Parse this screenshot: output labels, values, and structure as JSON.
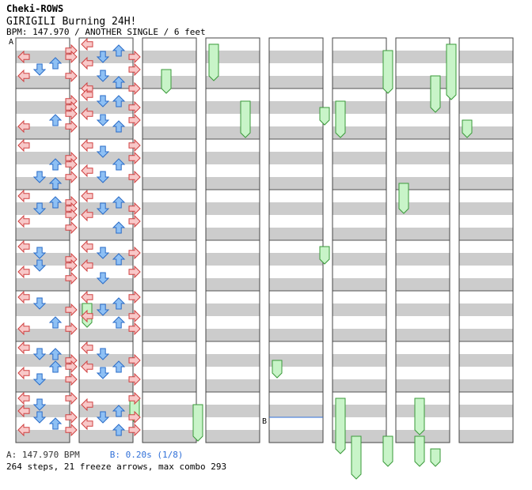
{
  "header": {
    "brand": "Cheki-ROWS",
    "song_title": "GIRIGILI Burning 24H!",
    "meta": "BPM: 147.970 / ANOTHER SINGLE / 6 feet"
  },
  "footer": {
    "bpm_label": "A: 147.970 BPM",
    "stop_label": "B: 0.20s (1/8)",
    "stats": "264 steps, 21 freeze arrows, max combo 293"
  },
  "markers": [
    {
      "label": "A",
      "kind": "bpm",
      "column": 1,
      "beat": 0
    },
    {
      "label": "B",
      "kind": "stop",
      "column": 5,
      "beat": 30
    }
  ],
  "colors": {
    "stripe": "#cccccc",
    "left_right_fill": "#f8c8c8",
    "left_right_stroke": "#d04040",
    "up_down_fill": "#8ec0f4",
    "up_down_stroke": "#2a6cc8",
    "freeze_fill": "#c8f4c8",
    "freeze_stroke": "#3a9a3a"
  },
  "chart_data": {
    "type": "step-chart",
    "panels": [
      "left",
      "down",
      "up",
      "right"
    ],
    "columns": 8,
    "measures_per_column": 8,
    "beats_per_measure": 4,
    "steps": [
      {
        "b": 0.5,
        "d": [
          "right"
        ]
      },
      {
        "b": 1,
        "d": [
          "left",
          "right"
        ]
      },
      {
        "b": 1.5,
        "d": [
          "up"
        ]
      },
      {
        "b": 2,
        "d": [
          "down"
        ]
      },
      {
        "b": 2.5,
        "d": [
          "left",
          "right"
        ]
      },
      {
        "b": 4.5,
        "d": [
          "right"
        ]
      },
      {
        "b": 5,
        "d": [
          "right"
        ]
      },
      {
        "b": 5.5,
        "d": [
          "right"
        ]
      },
      {
        "b": 6,
        "d": [
          "up"
        ]
      },
      {
        "b": 6.5,
        "d": [
          "left",
          "right"
        ]
      },
      {
        "b": 8,
        "d": [
          "left"
        ]
      },
      {
        "b": 9,
        "d": [
          "right"
        ]
      },
      {
        "b": 9.5,
        "d": [
          "up",
          "right"
        ]
      },
      {
        "b": 10.5,
        "d": [
          "down",
          "right"
        ]
      },
      {
        "b": 11,
        "d": [
          "up"
        ]
      },
      {
        "b": 12,
        "d": [
          "left"
        ]
      },
      {
        "b": 12.5,
        "d": [
          "up",
          "right"
        ]
      },
      {
        "b": 13,
        "d": [
          "down",
          "right"
        ]
      },
      {
        "b": 13.5,
        "d": [
          "right"
        ]
      },
      {
        "b": 14,
        "d": [
          "left"
        ]
      },
      {
        "b": 14.5,
        "d": [
          "right"
        ]
      },
      {
        "b": 16,
        "d": [
          "left"
        ]
      },
      {
        "b": 16.5,
        "d": [
          "down"
        ]
      },
      {
        "b": 17,
        "d": [
          "right"
        ]
      },
      {
        "b": 17.5,
        "d": [
          "down",
          "right"
        ]
      },
      {
        "b": 18,
        "d": [
          "left"
        ]
      },
      {
        "b": 18.5,
        "d": [
          "right"
        ]
      },
      {
        "b": 20,
        "d": [
          "left"
        ]
      },
      {
        "b": 20.5,
        "d": [
          "down"
        ]
      },
      {
        "b": 21,
        "d": [
          "right"
        ]
      },
      {
        "b": 22,
        "d": [
          "up"
        ]
      },
      {
        "b": 22.5,
        "d": [
          "left",
          "right"
        ]
      },
      {
        "b": 24,
        "d": [
          "left"
        ]
      },
      {
        "b": 24.5,
        "d": [
          "up",
          "down"
        ]
      },
      {
        "b": 25,
        "d": [
          "right"
        ]
      },
      {
        "b": 25.5,
        "d": [
          "up",
          "right"
        ]
      },
      {
        "b": 26,
        "d": [
          "left"
        ]
      },
      {
        "b": 26.5,
        "d": [
          "down",
          "right"
        ]
      },
      {
        "b": 28,
        "d": [
          "left",
          "right"
        ]
      },
      {
        "b": 28.5,
        "d": [
          "down"
        ]
      },
      {
        "b": 29,
        "d": [
          "left"
        ]
      },
      {
        "b": 29.5,
        "d": [
          "down",
          "right"
        ]
      },
      {
        "b": 30,
        "d": [
          "up"
        ]
      },
      {
        "b": 30.5,
        "d": [
          "left",
          "right"
        ]
      },
      {
        "b": 32,
        "d": [
          "left"
        ]
      },
      {
        "b": 32.5,
        "d": [
          "up"
        ]
      },
      {
        "b": 33,
        "d": [
          "down",
          "right"
        ]
      },
      {
        "b": 33.5,
        "d": [
          "left"
        ]
      },
      {
        "b": 34,
        "d": [
          "right"
        ]
      },
      {
        "b": 34.5,
        "d": [
          "down"
        ]
      },
      {
        "b": 35,
        "d": [
          "up"
        ]
      },
      {
        "b": 35.5,
        "d": [
          "left",
          "right"
        ]
      },
      {
        "b": 36,
        "d": [
          "left"
        ]
      },
      {
        "b": 36.5,
        "d": [
          "down",
          "up"
        ]
      },
      {
        "b": 37,
        "d": [
          "right"
        ]
      },
      {
        "b": 37.5,
        "d": [
          "left"
        ]
      },
      {
        "b": 38,
        "d": [
          "down",
          "right"
        ]
      },
      {
        "b": 38.5,
        "d": [
          "up"
        ]
      },
      {
        "b": 40,
        "d": [
          "left",
          "right"
        ]
      },
      {
        "b": 40.5,
        "d": [
          "down"
        ]
      },
      {
        "b": 41,
        "d": [
          "right"
        ]
      },
      {
        "b": 41.5,
        "d": [
          "up"
        ]
      },
      {
        "b": 42,
        "d": [
          "left"
        ]
      },
      {
        "b": 42.5,
        "d": [
          "down",
          "right"
        ]
      },
      {
        "b": 44,
        "d": [
          "left"
        ]
      },
      {
        "b": 44.5,
        "d": [
          "up"
        ]
      },
      {
        "b": 45,
        "d": [
          "down",
          "right"
        ]
      },
      {
        "b": 45.5,
        "d": [
          "left"
        ]
      },
      {
        "b": 46,
        "d": [
          "right"
        ]
      },
      {
        "b": 46.5,
        "d": [
          "up"
        ]
      },
      {
        "b": 48,
        "d": [
          "left"
        ]
      },
      {
        "b": 48.5,
        "d": [
          "down",
          "right"
        ]
      },
      {
        "b": 49,
        "d": [
          "up"
        ]
      },
      {
        "b": 49.5,
        "d": [
          "left"
        ]
      },
      {
        "b": 50,
        "d": [
          "right"
        ]
      },
      {
        "b": 50.5,
        "d": [
          "down"
        ]
      },
      {
        "b": 52,
        "d": [
          "left",
          "right"
        ]
      },
      {
        "b": 52.5,
        "d": [
          "up"
        ]
      },
      {
        "b": 53,
        "d": [
          "down"
        ]
      },
      {
        "b": 53.5,
        "d": [
          "left",
          "right"
        ]
      },
      {
        "b": 54,
        "d": [
          "up"
        ]
      },
      {
        "b": 54.5,
        "d": [
          "right"
        ]
      },
      {
        "b": 56,
        "d": [
          "left"
        ]
      },
      {
        "b": 56.5,
        "d": [
          "down"
        ]
      },
      {
        "b": 57,
        "d": [
          "right"
        ]
      },
      {
        "b": 57.5,
        "d": [
          "left",
          "up"
        ]
      },
      {
        "b": 58,
        "d": [
          "down"
        ]
      },
      {
        "b": 58.5,
        "d": [
          "right"
        ]
      },
      {
        "b": 60,
        "d": [
          "right"
        ]
      },
      {
        "b": 60.5,
        "d": [
          "left"
        ]
      },
      {
        "b": 61,
        "d": [
          "up"
        ]
      },
      {
        "b": 61.5,
        "d": [
          "down",
          "right"
        ]
      },
      {
        "b": 62,
        "d": [
          "left"
        ]
      },
      {
        "b": 62.5,
        "d": [
          "up",
          "right"
        ]
      }
    ],
    "freezes": [
      {
        "col": 1,
        "panel": "left",
        "from": 20.5,
        "to": 22
      },
      {
        "col": 1,
        "panel": "right",
        "from": 28,
        "to": 29.5
      },
      {
        "col": 2,
        "panel": "down",
        "from": 2,
        "to": 3.5
      },
      {
        "col": 2,
        "panel": "right",
        "from": 28.5,
        "to": 31
      },
      {
        "col": 3,
        "panel": "left",
        "from": 0,
        "to": 2.5
      },
      {
        "col": 3,
        "panel": "up",
        "from": 4.5,
        "to": 7
      },
      {
        "col": 4,
        "panel": "left",
        "from": 25,
        "to": 26
      },
      {
        "col": 4,
        "panel": "right",
        "from": 5,
        "to": 6
      },
      {
        "col": 4,
        "panel": "right",
        "from": 16,
        "to": 17
      },
      {
        "col": 5,
        "panel": "left",
        "from": 4.5,
        "to": 7
      },
      {
        "col": 5,
        "panel": "left",
        "from": 28,
        "to": 32
      },
      {
        "col": 5,
        "panel": "down",
        "from": 31,
        "to": 34
      },
      {
        "col": 5,
        "panel": "right",
        "from": 0.5,
        "to": 3.5
      },
      {
        "col": 5,
        "panel": "right",
        "from": 31,
        "to": 33
      },
      {
        "col": 6,
        "panel": "left",
        "from": 11,
        "to": 13
      },
      {
        "col": 6,
        "panel": "down",
        "from": 31,
        "to": 33
      },
      {
        "col": 6,
        "panel": "down",
        "from": 28,
        "to": 30.5
      },
      {
        "col": 6,
        "panel": "up",
        "from": 2.5,
        "to": 5
      },
      {
        "col": 6,
        "panel": "right",
        "from": 0,
        "to": 4
      },
      {
        "col": 6,
        "panel": "up",
        "from": 32,
        "to": 33
      },
      {
        "col": 7,
        "panel": "left",
        "from": 6,
        "to": 7
      }
    ]
  }
}
